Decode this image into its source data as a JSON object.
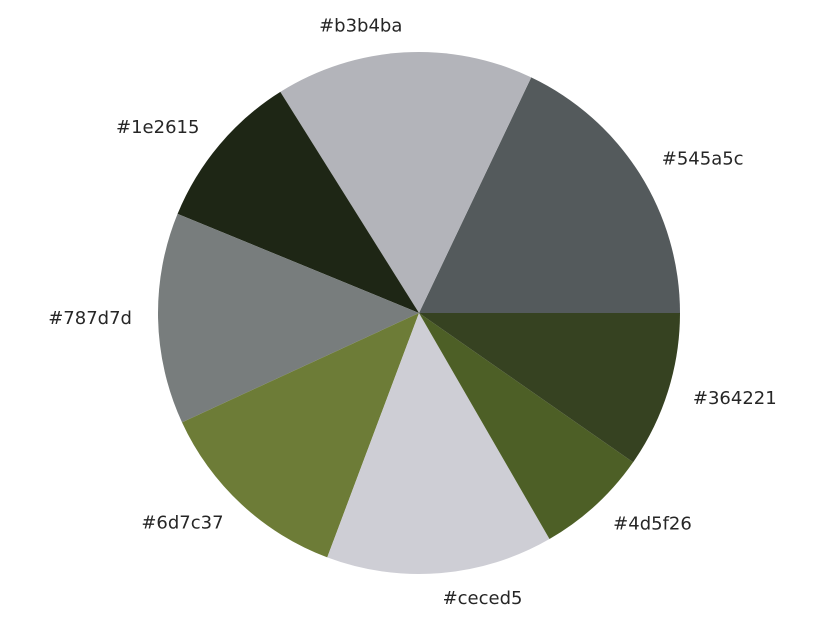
{
  "chart_data": {
    "type": "pie",
    "start_angle_deg": 0,
    "direction": "counterclockwise",
    "slices": [
      {
        "label": "#545a5c",
        "value": 18.5,
        "color": "#545a5c"
      },
      {
        "label": "#b3b4ba",
        "value": 16.5,
        "color": "#b3b4ba"
      },
      {
        "label": "#1e2615",
        "value": 10.2,
        "color": "#1e2615"
      },
      {
        "label": "#787d7d",
        "value": 13.5,
        "color": "#787d7d"
      },
      {
        "label": "#6d7c37",
        "value": 12.8,
        "color": "#6d7c37"
      },
      {
        "label": "#ceced5",
        "value": 14.5,
        "color": "#ceced5"
      },
      {
        "label": "#4d5f26",
        "value": 7.2,
        "color": "#4d5f26"
      },
      {
        "label": "#364221",
        "value": 10.0,
        "color": "#364221"
      }
    ]
  }
}
